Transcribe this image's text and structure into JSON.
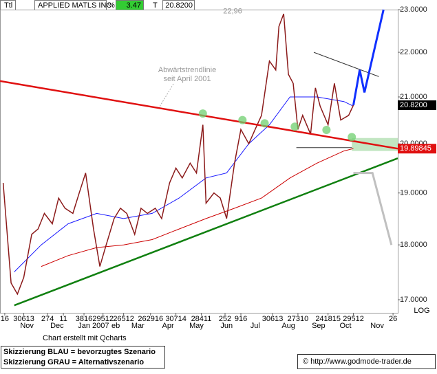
{
  "header": {
    "symbol_field": "Ttl",
    "name": "APPLIED MATLS INC",
    "pct_field": "%",
    "pct_change": 3.47,
    "t_field": "T",
    "last": {
      "value": 20.82,
      "label": "20.8200"
    }
  },
  "chart_data": {
    "type": "line",
    "log_scale": true,
    "scale_label": "LOG",
    "xlim": [
      0,
      251
    ],
    "ylim": [
      16.77,
      23.0
    ],
    "yticks": [
      {
        "value": 17,
        "label": "17.0000"
      },
      {
        "value": 18,
        "label": "18.0000"
      },
      {
        "value": 19,
        "label": "19.0000"
      },
      {
        "value": 20,
        "label": "20.0000"
      },
      {
        "value": 21,
        "label": "21.0000"
      },
      {
        "value": 22,
        "label": "22.0000"
      },
      {
        "value": 23,
        "label": "23.0000"
      }
    ],
    "xticks": [
      {
        "value": 3,
        "label": "16"
      },
      {
        "value": 15,
        "label": "30613"
      },
      {
        "value": 30,
        "label": "274"
      },
      {
        "value": 40,
        "label": "11"
      },
      {
        "value": 53,
        "label": "3816"
      },
      {
        "value": 65,
        "label": "29512"
      },
      {
        "value": 78,
        "label": "26512"
      },
      {
        "value": 95,
        "label": "262916"
      },
      {
        "value": 111,
        "label": "30714"
      },
      {
        "value": 127,
        "label": "28411"
      },
      {
        "value": 142,
        "label": "252"
      },
      {
        "value": 152,
        "label": "916"
      },
      {
        "value": 172,
        "label": "30613"
      },
      {
        "value": 188,
        "label": "27310"
      },
      {
        "value": 207,
        "label": "241815"
      },
      {
        "value": 223,
        "label": "29512"
      },
      {
        "value": 248,
        "label": "26"
      }
    ],
    "month_ticks": [
      {
        "value": 17,
        "label": "Nov"
      },
      {
        "value": 36,
        "label": "Dec"
      },
      {
        "value": 59,
        "label": "Jan 2007"
      },
      {
        "value": 73,
        "label": "eb"
      },
      {
        "value": 87,
        "label": "Mar"
      },
      {
        "value": 106,
        "label": "Apr"
      },
      {
        "value": 124,
        "label": "May"
      },
      {
        "value": 143,
        "label": "Jun"
      },
      {
        "value": 161,
        "label": "Jul"
      },
      {
        "value": 182,
        "label": "Aug"
      },
      {
        "value": 201,
        "label": "Sep"
      },
      {
        "value": 218,
        "label": "Oct"
      },
      {
        "value": 238,
        "label": "Nov"
      }
    ],
    "price": {
      "color": "#8b1a1a",
      "x": [
        2,
        7,
        11,
        15,
        20,
        24,
        28,
        33,
        37,
        41,
        46,
        50,
        54,
        59,
        63,
        67,
        72,
        76,
        80,
        85,
        89,
        93,
        98,
        102,
        107,
        111,
        115,
        120,
        124,
        128,
        130,
        135,
        139,
        143,
        148,
        152,
        157,
        161,
        165,
        170,
        174,
        176,
        179,
        182,
        185,
        188,
        191,
        196,
        199,
        202,
        207,
        211,
        215,
        220,
        223
      ],
      "values": [
        19.2,
        17.3,
        17.1,
        17.4,
        18.2,
        18.3,
        18.6,
        18.4,
        18.9,
        18.7,
        18.6,
        19.0,
        19.4,
        18.3,
        17.6,
        18.0,
        18.5,
        18.7,
        18.6,
        18.2,
        18.7,
        18.6,
        18.7,
        18.5,
        19.2,
        19.5,
        19.3,
        19.6,
        19.4,
        20.4,
        18.8,
        19.0,
        18.9,
        18.5,
        19.6,
        20.3,
        20.0,
        20.3,
        20.6,
        21.8,
        21.6,
        22.6,
        22.9,
        21.5,
        21.3,
        20.3,
        20.6,
        20.2,
        21.2,
        20.8,
        20.4,
        21.3,
        20.5,
        20.6,
        20.82
      ]
    },
    "moving_averages": [
      {
        "color": "#1a1aff",
        "x": [
          9,
          26,
          43,
          61,
          78,
          96,
          113,
          130,
          143,
          157,
          170,
          183,
          200,
          217,
          223
        ],
        "values": [
          17.5,
          18.0,
          18.4,
          18.6,
          18.5,
          18.6,
          18.9,
          19.3,
          19.4,
          20.0,
          20.4,
          21.0,
          21.0,
          20.9,
          20.8
        ]
      },
      {
        "color": "#cc0000",
        "x": [
          26,
          43,
          61,
          78,
          96,
          113,
          130,
          148,
          165,
          183,
          200,
          217,
          223
        ],
        "values": [
          17.6,
          17.8,
          17.95,
          18.0,
          18.1,
          18.3,
          18.5,
          18.7,
          18.9,
          19.3,
          19.6,
          19.85,
          19.9
        ]
      }
    ],
    "trendlines": [
      {
        "color": "#e01010",
        "width": 2.5,
        "x": [
          0,
          251
        ],
        "values": [
          21.35,
          19.89845
        ]
      },
      {
        "color": "#108010",
        "width": 2.5,
        "x": [
          9,
          251
        ],
        "values": [
          16.9,
          19.7
        ]
      },
      {
        "color": "#333333",
        "width": 1,
        "x": [
          198,
          239
        ],
        "values": [
          22.0,
          21.45
        ]
      },
      {
        "color": "#333333",
        "width": 1,
        "x": [
          187,
          222
        ],
        "values": [
          19.92,
          19.92
        ]
      },
      {
        "color": "#1030ff",
        "width": 3,
        "x": [
          223,
          227,
          230,
          242
        ],
        "values": [
          20.82,
          21.6,
          21.1,
          23.0
        ]
      },
      {
        "color": "#c0c0c0",
        "width": 3,
        "x": [
          223,
          235,
          247
        ],
        "values": [
          19.4,
          19.4,
          18.0
        ]
      }
    ],
    "pivots": {
      "color": "#6fcf6f",
      "x": [
        128,
        153,
        167,
        186,
        206,
        222
      ],
      "values": [
        20.64,
        20.5,
        20.43,
        20.36,
        20.29,
        20.14
      ]
    },
    "support_band": {
      "color": "#a8dca8",
      "x": [
        222,
        251
      ],
      "values": [
        19.85,
        20.12
      ]
    },
    "high_label": {
      "value": 22.96,
      "label": "22,96"
    },
    "last_tag": {
      "value": 20.82,
      "label": "20.8200"
    },
    "trend_tag": {
      "value": 19.89845,
      "label": "19.89845"
    },
    "annotation": [
      "Abwärtstrendlinie",
      "seit April 2001"
    ]
  },
  "footer": {
    "credit": "Chart erstellt mit Qcharts",
    "legend": [
      "Skizzierung BLAU = bevorzugtes Szenario",
      "Skizzierung GRAU = Alternativszenario"
    ],
    "copyright": "© http://www.godmode-trader.de"
  }
}
